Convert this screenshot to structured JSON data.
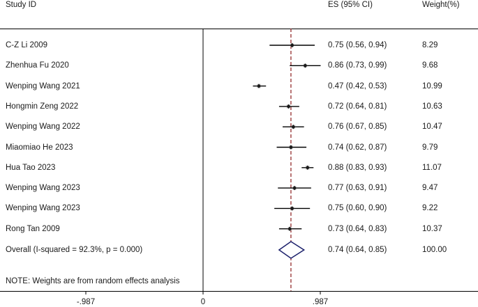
{
  "chart_data": {
    "type": "forest",
    "headers": {
      "study": "Study ID",
      "es": "ES (95% CI)",
      "weight": "Weight(%)"
    },
    "studies": [
      {
        "label": "C-Z Li 2009",
        "es": 0.75,
        "lo": 0.56,
        "hi": 0.94,
        "es_text": "0.75 (0.56, 0.94)",
        "weight": 8.29,
        "weight_text": "8.29"
      },
      {
        "label": "Zhenhua Fu 2020",
        "es": 0.86,
        "lo": 0.73,
        "hi": 0.99,
        "es_text": "0.86 (0.73, 0.99)",
        "weight": 9.68,
        "weight_text": "9.68"
      },
      {
        "label": "Wenping Wang 2021",
        "es": 0.47,
        "lo": 0.42,
        "hi": 0.53,
        "es_text": "0.47 (0.42, 0.53)",
        "weight": 10.99,
        "weight_text": "10.99"
      },
      {
        "label": "Hongmin Zeng 2022",
        "es": 0.72,
        "lo": 0.64,
        "hi": 0.81,
        "es_text": "0.72 (0.64, 0.81)",
        "weight": 10.63,
        "weight_text": "10.63"
      },
      {
        "label": "Wenping Wang 2022",
        "es": 0.76,
        "lo": 0.67,
        "hi": 0.85,
        "es_text": "0.76 (0.67, 0.85)",
        "weight": 10.47,
        "weight_text": "10.47"
      },
      {
        "label": "Miaomiao He 2023",
        "es": 0.74,
        "lo": 0.62,
        "hi": 0.87,
        "es_text": "0.74 (0.62, 0.87)",
        "weight": 9.79,
        "weight_text": "9.79"
      },
      {
        "label": "Hua Tao 2023",
        "es": 0.88,
        "lo": 0.83,
        "hi": 0.93,
        "es_text": "0.88 (0.83, 0.93)",
        "weight": 11.07,
        "weight_text": "11.07"
      },
      {
        "label": "Wenping Wang 2023",
        "es": 0.77,
        "lo": 0.63,
        "hi": 0.91,
        "es_text": "0.77 (0.63, 0.91)",
        "weight": 9.47,
        "weight_text": "9.47"
      },
      {
        "label": "Wenping Wang 2023",
        "es": 0.75,
        "lo": 0.6,
        "hi": 0.9,
        "es_text": "0.75 (0.60, 0.90)",
        "weight": 9.22,
        "weight_text": "9.22"
      },
      {
        "label": "Rong Tan 2009",
        "es": 0.73,
        "lo": 0.64,
        "hi": 0.83,
        "es_text": "0.73 (0.64, 0.83)",
        "weight": 10.37,
        "weight_text": "10.37"
      }
    ],
    "overall": {
      "label": "Overall  (I-squared = 92.3%, p = 0.000)",
      "es": 0.74,
      "lo": 0.64,
      "hi": 0.85,
      "es_text": "0.74 (0.64, 0.85)",
      "weight": 100.0,
      "weight_text": "100.00"
    },
    "note": "NOTE: Weights are from random effects analysis",
    "x_ticks": [
      {
        "value": -0.987,
        "label": "-.987"
      },
      {
        "value": 0,
        "label": "0"
      },
      {
        "value": 0.987,
        "label": ".987"
      }
    ],
    "xlim": [
      -1.193,
      1.181
    ],
    "null_line": 0,
    "colors": {
      "line": "#000000",
      "overall_line": "#8b1a1a",
      "diamond": "#1a1f6b",
      "marker": "#1a1a1a",
      "box": "#c0c0c0"
    }
  }
}
